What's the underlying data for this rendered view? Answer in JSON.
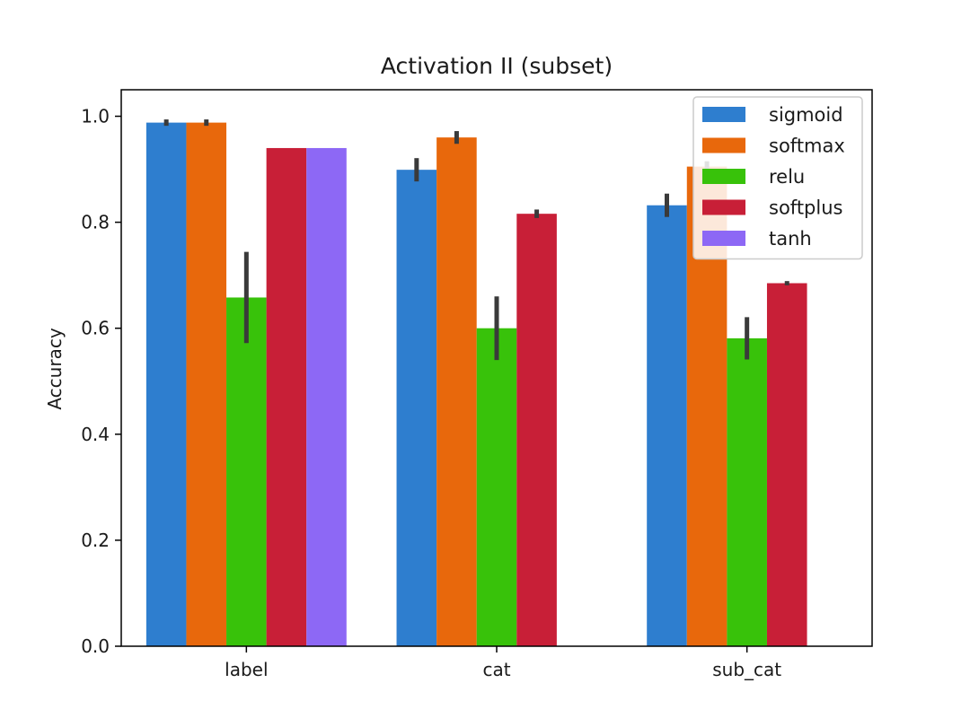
{
  "chart_data": {
    "type": "bar",
    "title": "Activation II (subset)",
    "xlabel": "",
    "ylabel": "Accuracy",
    "ylim": [
      0,
      1.05
    ],
    "yticks": [
      "0.0",
      "0.2",
      "0.4",
      "0.6",
      "0.8",
      "1.0"
    ],
    "categories": [
      "label",
      "cat",
      "sub_cat"
    ],
    "legend_position": "top-right",
    "grid": false,
    "series": [
      {
        "name": "sigmoid",
        "color": "#2e7ecf",
        "values": [
          0.988,
          0.899,
          0.832
        ],
        "err": [
          0.006,
          0.022,
          0.022
        ]
      },
      {
        "name": "softmax",
        "color": "#e8680c",
        "values": [
          0.988,
          0.96,
          0.905
        ],
        "err": [
          0.006,
          0.012,
          0.01
        ]
      },
      {
        "name": "relu",
        "color": "#38c20a",
        "values": [
          0.658,
          0.6,
          0.581
        ],
        "err": [
          0.086,
          0.06,
          0.04
        ]
      },
      {
        "name": "softplus",
        "color": "#c81f37",
        "values": [
          0.94,
          0.816,
          0.685
        ],
        "err": [
          0.0,
          0.008,
          0.004
        ]
      },
      {
        "name": "tanh",
        "color": "#8d68f5",
        "values": [
          0.94,
          null,
          null
        ],
        "err": [
          0.0,
          null,
          null
        ]
      }
    ]
  }
}
